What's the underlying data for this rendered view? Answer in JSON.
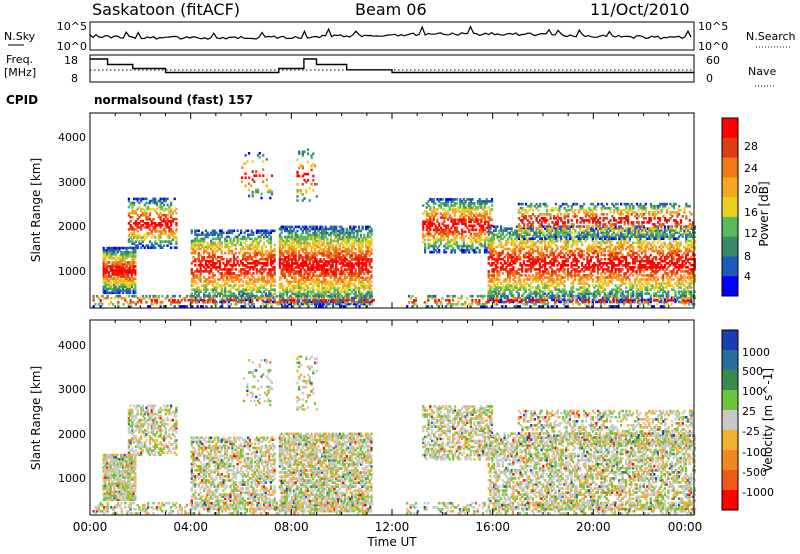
{
  "header": {
    "station": "Saskatoon (fitACF)",
    "beam": "Beam 06",
    "date": "11/Oct/2010"
  },
  "noise_panel": {
    "left_label": "N.Sky",
    "right_label": "N.Search",
    "left_ticks": [
      "10^5",
      "10^0"
    ],
    "right_ticks": [
      "10^5",
      "10^0"
    ]
  },
  "freq_panel": {
    "left_label_1": "Freq.",
    "left_label_2": "[MHz]",
    "right_label": "Nave",
    "left_ticks": [
      "18",
      "8"
    ],
    "right_ticks": [
      "60",
      "0"
    ]
  },
  "cpid": {
    "label": "CPID",
    "text": "normalsound (fast) 157"
  },
  "x_axis": {
    "ticks": [
      "00:00",
      "04:00",
      "08:00",
      "12:00",
      "16:00",
      "20:00",
      "00:00"
    ],
    "label": "Time UT"
  },
  "power_panel": {
    "ylabel": "Slant Range [km]",
    "yticks": [
      "1000",
      "2000",
      "3000",
      "4000"
    ],
    "colorbar_label": "Power [dB]",
    "colorbar_ticks": [
      "4",
      "8",
      "12",
      "16",
      "20",
      "24",
      "28"
    ],
    "colors": [
      "#0000ff",
      "#1e5bb8",
      "#3c8a6a",
      "#5cb85c",
      "#e8d21e",
      "#f5a623",
      "#f07a18",
      "#e03c14",
      "#ff0000"
    ]
  },
  "velocity_panel": {
    "ylabel": "Slant Range [km]",
    "yticks": [
      "1000",
      "2000",
      "3000",
      "4000"
    ],
    "colorbar_label": "Velocity [m s^-1]",
    "colorbar_ticks": [
      "1000",
      "500",
      "100",
      "25",
      "-25",
      "-100",
      "-500",
      "-1000"
    ],
    "colors": [
      "#1a3cb4",
      "#2a6e9a",
      "#3c8a4a",
      "#6ec43c",
      "#c8c8c8",
      "#f0b030",
      "#f08a1e",
      "#f05a14",
      "#ff0000"
    ]
  },
  "chart_data": {
    "type": "heatmap",
    "x": [
      "00:00",
      "04:00",
      "08:00",
      "12:00",
      "16:00",
      "20:00",
      "00:00"
    ],
    "y_range": [
      180,
      4500
    ],
    "power_range_db": [
      0,
      32
    ],
    "velocity_levels": [
      -1000,
      -500,
      -100,
      -25,
      25,
      100,
      500,
      1000
    ],
    "frequency_ylim": [
      8,
      18
    ],
    "nave_ylim": [
      0,
      60
    ],
    "frequency_mhz": [
      {
        "t": 0.0,
        "v": 16.5
      },
      {
        "t": 0.7,
        "v": 14.5
      },
      {
        "t": 1.7,
        "v": 13.0
      },
      {
        "t": 3.0,
        "v": 11.5
      },
      {
        "t": 7.5,
        "v": 13.0
      },
      {
        "t": 8.5,
        "v": 16.5
      },
      {
        "t": 9.0,
        "v": 14.5
      },
      {
        "t": 10.2,
        "v": 12.5
      },
      {
        "t": 12.0,
        "v": 11.5
      },
      {
        "t": 24.0,
        "v": 11.5
      }
    ],
    "data_gaps_ut": [
      [
        11.25,
        12.5
      ],
      [
        13.0,
        13.2
      ]
    ]
  }
}
